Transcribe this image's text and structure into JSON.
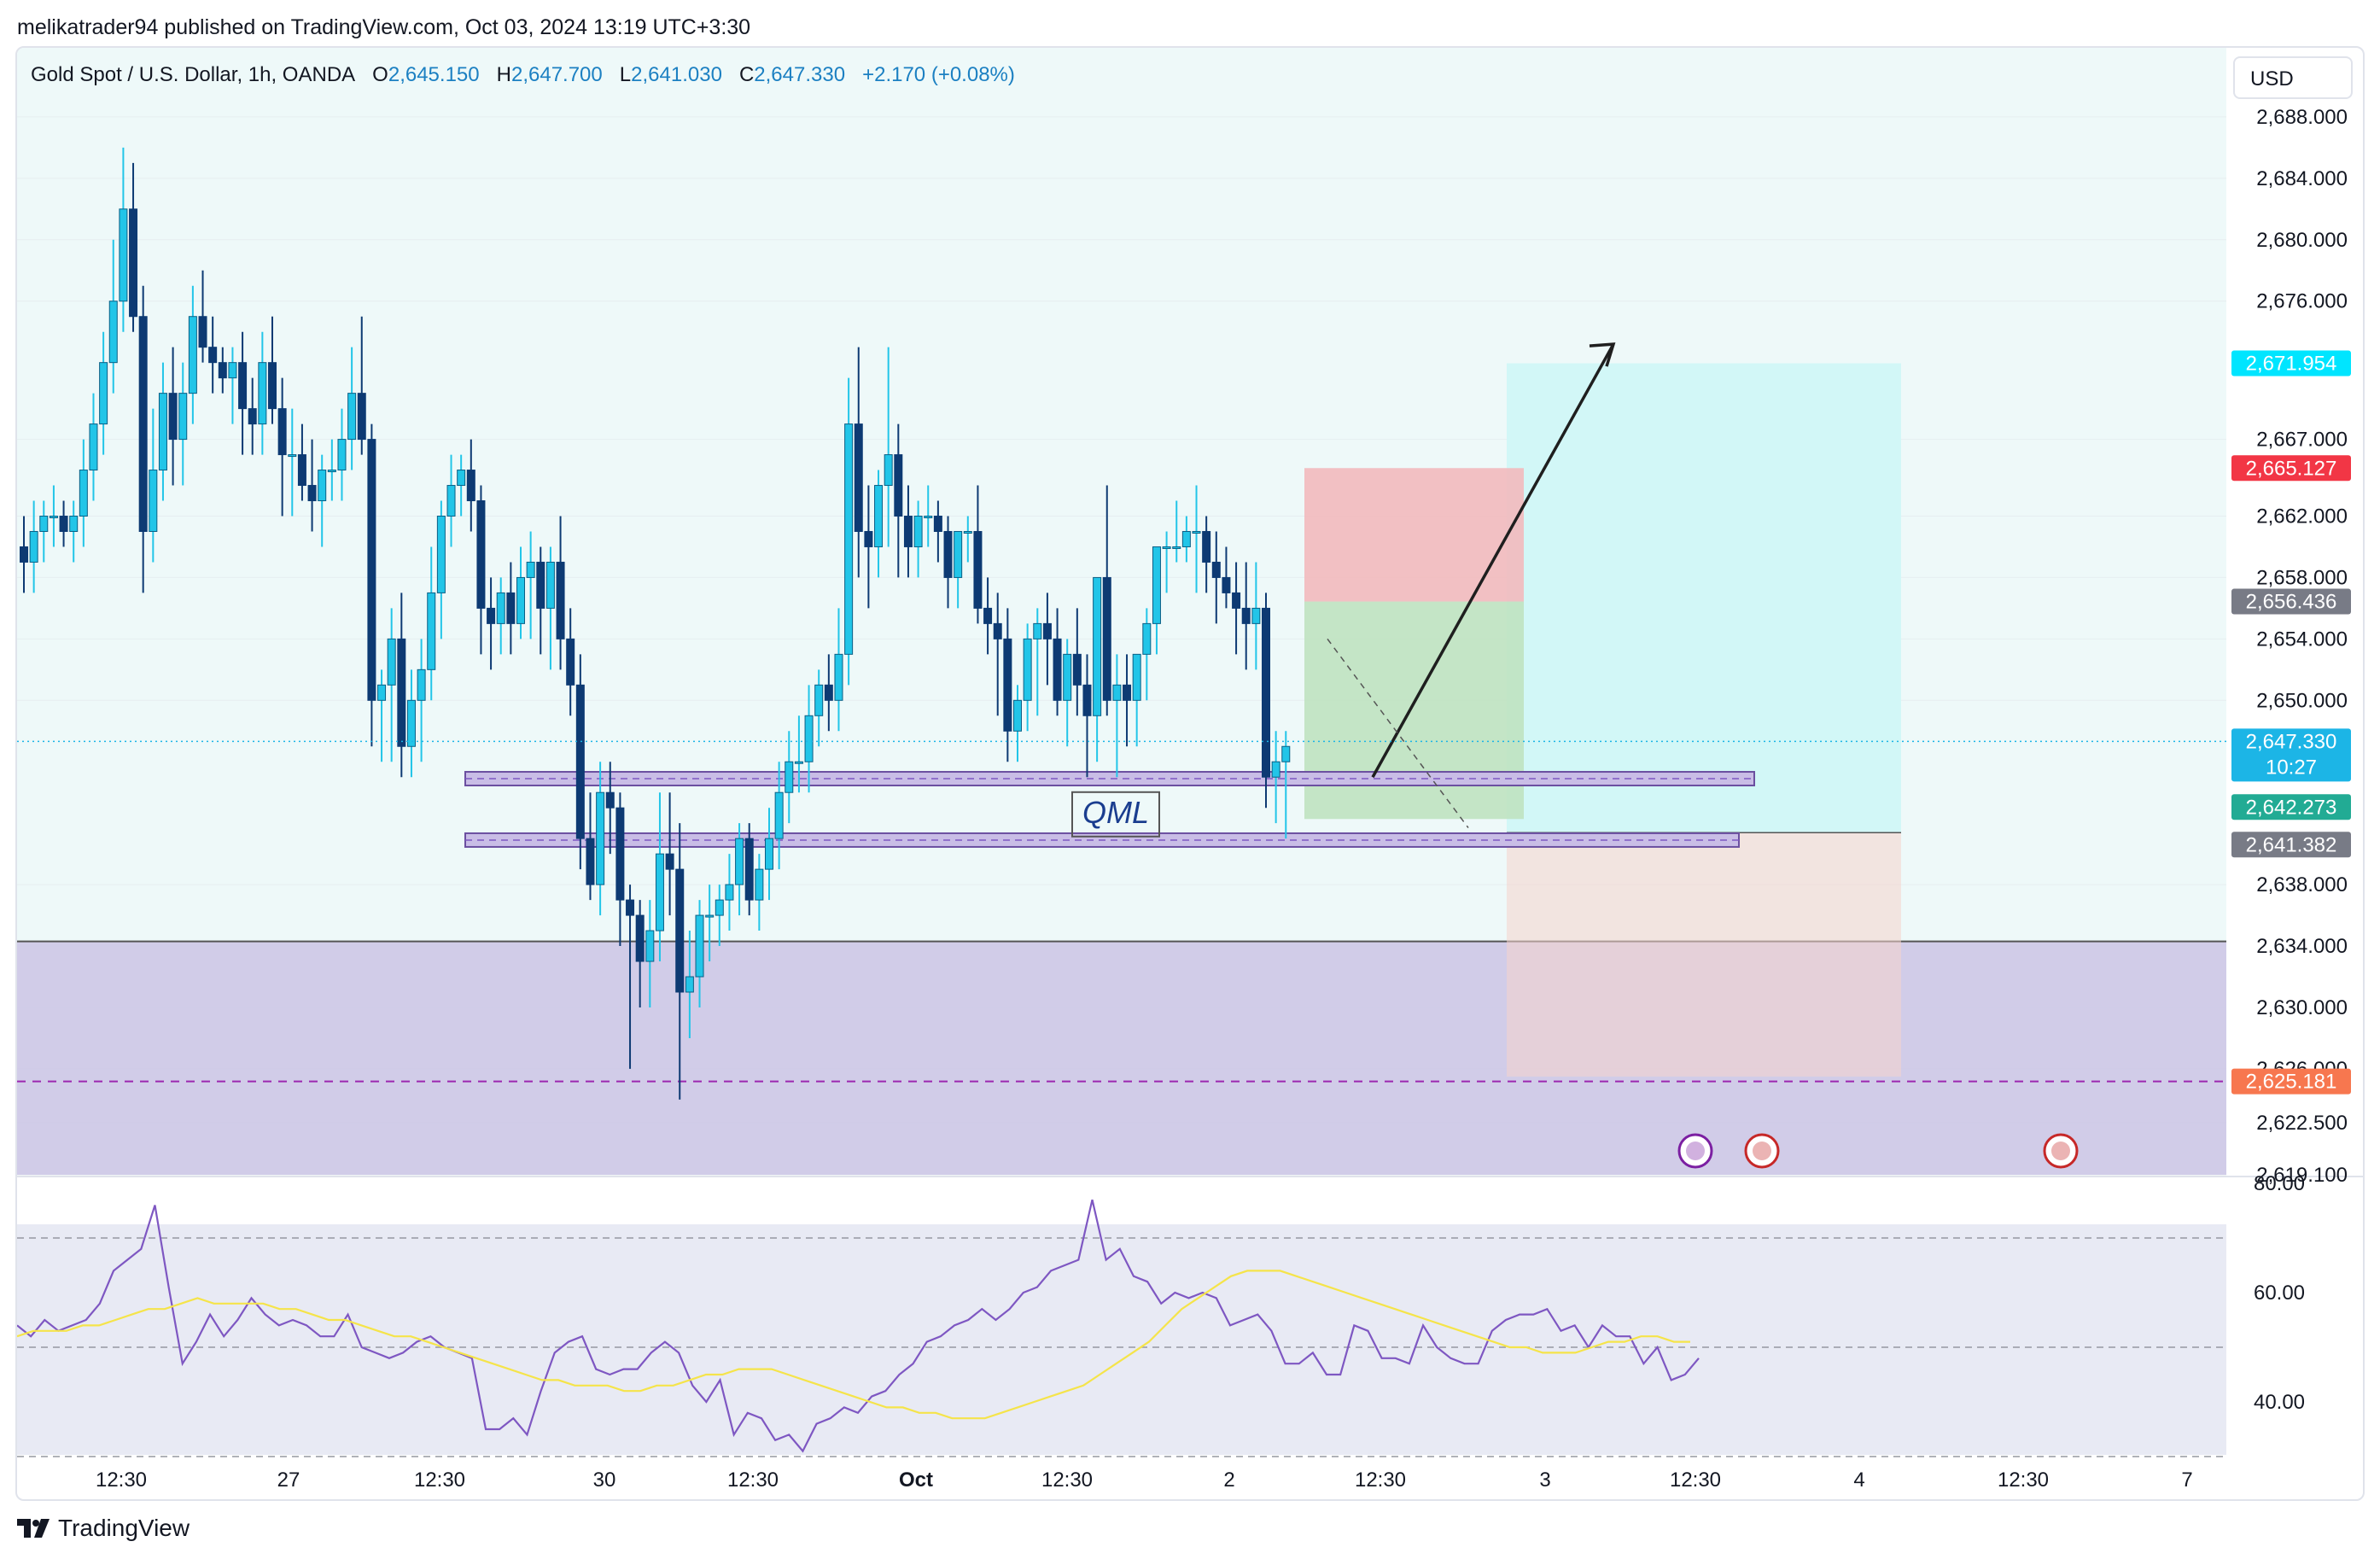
{
  "header": {
    "published": "melikatrader94 published on TradingView.com, Oct 03, 2024 13:19 UTC+3:30"
  },
  "legend": {
    "symbol": "Gold Spot / U.S. Dollar, 1h, OANDA",
    "open_label": "O",
    "open": "2,645.150",
    "high_label": "H",
    "high": "2,647.700",
    "low_label": "L",
    "low": "2,641.030",
    "close_label": "C",
    "close": "2,647.330",
    "change": "+2.170 (+0.08%)"
  },
  "currency": "USD",
  "countdown": "10:27",
  "annotation_text": "QML",
  "branding": "TradingView",
  "colors": {
    "up": "#22c5e8",
    "down": "#0d3a73",
    "zone_purple": "#cdc6e6",
    "target_cyan": "#d2f7f7",
    "stop_red": "#f2b9bc",
    "rsi_line": "#7e57c2",
    "rsi_ma": "#f5e44a"
  },
  "chart_data": [
    {
      "type": "candlestick",
      "title": "Gold Spot / U.S. Dollar, 1h, OANDA",
      "ylim": [
        2619.1,
        2692.5
      ],
      "y_ticks": [
        "2,688.000",
        "2,684.000",
        "2,680.000",
        "2,676.000",
        "2,667.000",
        "2,662.000",
        "2,658.000",
        "2,654.000",
        "2,650.000",
        "2,638.000",
        "2,634.000",
        "2,630.000",
        "2,626.000",
        "2,622.500",
        "2,619.100"
      ],
      "x_ticks": [
        "12:30",
        "27",
        "12:30",
        "30",
        "12:30",
        "Oct",
        "12:30",
        "2",
        "12:30",
        "3",
        "12:30",
        "4",
        "12:30",
        "7"
      ],
      "price_labels": [
        {
          "value": "2,671.954",
          "color": "#00e5ff"
        },
        {
          "value": "2,665.127",
          "color": "#f23645"
        },
        {
          "value": "2,656.436",
          "color": "#787b86"
        },
        {
          "value": "2,647.330",
          "color": "#1cb5e6"
        },
        {
          "value": "2,642.273",
          "color": "#22ab94"
        },
        {
          "value": "2,641.382",
          "color": "#787b86"
        },
        {
          "value": "2,625.181",
          "color": "#f7774f"
        }
      ],
      "ohlc": [
        [
          2660,
          2662,
          2657,
          2659
        ],
        [
          2659,
          2663,
          2657,
          2661
        ],
        [
          2661,
          2663,
          2659,
          2662
        ],
        [
          2662,
          2664,
          2660,
          2662
        ],
        [
          2662,
          2663,
          2660,
          2661
        ],
        [
          2661,
          2663,
          2659,
          2662
        ],
        [
          2662,
          2667,
          2660,
          2665
        ],
        [
          2665,
          2670,
          2663,
          2668
        ],
        [
          2668,
          2674,
          2666,
          2672
        ],
        [
          2672,
          2680,
          2670,
          2676
        ],
        [
          2676,
          2686,
          2674,
          2682
        ],
        [
          2682,
          2685,
          2674,
          2675
        ],
        [
          2675,
          2677,
          2657,
          2661
        ],
        [
          2661,
          2669,
          2659,
          2665
        ],
        [
          2665,
          2672,
          2663,
          2670
        ],
        [
          2670,
          2673,
          2664,
          2667
        ],
        [
          2667,
          2672,
          2664,
          2670
        ],
        [
          2670,
          2677,
          2668,
          2675
        ],
        [
          2675,
          2678,
          2672,
          2673
        ],
        [
          2673,
          2675,
          2670,
          2672
        ],
        [
          2672,
          2673,
          2670,
          2671
        ],
        [
          2671,
          2673,
          2668,
          2672
        ],
        [
          2672,
          2674,
          2666,
          2669
        ],
        [
          2669,
          2671,
          2666,
          2668
        ],
        [
          2668,
          2674,
          2666,
          2672
        ],
        [
          2672,
          2675,
          2668,
          2669
        ],
        [
          2669,
          2671,
          2662,
          2666
        ],
        [
          2666,
          2669,
          2662,
          2666
        ],
        [
          2666,
          2668,
          2663,
          2664
        ],
        [
          2664,
          2667,
          2661,
          2663
        ],
        [
          2663,
          2666,
          2660,
          2665
        ],
        [
          2665,
          2667,
          2663,
          2665
        ],
        [
          2665,
          2669,
          2663,
          2667
        ],
        [
          2667,
          2673,
          2665,
          2670
        ],
        [
          2670,
          2675,
          2666,
          2667
        ],
        [
          2667,
          2668,
          2647,
          2650
        ],
        [
          2650,
          2652,
          2646,
          2651
        ],
        [
          2651,
          2656,
          2646,
          2654
        ],
        [
          2654,
          2657,
          2645,
          2647
        ],
        [
          2647,
          2652,
          2645,
          2650
        ],
        [
          2650,
          2654,
          2646,
          2652
        ],
        [
          2652,
          2660,
          2650,
          2657
        ],
        [
          2657,
          2663,
          2654,
          2662
        ],
        [
          2662,
          2666,
          2660,
          2664
        ],
        [
          2664,
          2666,
          2662,
          2665
        ],
        [
          2665,
          2667,
          2661,
          2663
        ],
        [
          2663,
          2664,
          2653,
          2656
        ],
        [
          2656,
          2658,
          2652,
          2655
        ],
        [
          2655,
          2658,
          2653,
          2657
        ],
        [
          2657,
          2659,
          2653,
          2655
        ],
        [
          2655,
          2660,
          2654,
          2658
        ],
        [
          2658,
          2661,
          2654,
          2659
        ],
        [
          2659,
          2660,
          2653,
          2656
        ],
        [
          2656,
          2660,
          2652,
          2659
        ],
        [
          2659,
          2662,
          2652,
          2654
        ],
        [
          2654,
          2656,
          2649,
          2651
        ],
        [
          2651,
          2653,
          2639,
          2641
        ],
        [
          2641,
          2644,
          2637,
          2638
        ],
        [
          2638,
          2646,
          2636,
          2644
        ],
        [
          2644,
          2646,
          2640,
          2643
        ],
        [
          2643,
          2644,
          2634,
          2637
        ],
        [
          2637,
          2638,
          2626,
          2636
        ],
        [
          2636,
          2637,
          2630,
          2633
        ],
        [
          2633,
          2637,
          2630,
          2635
        ],
        [
          2635,
          2644,
          2633,
          2640
        ],
        [
          2640,
          2644,
          2636,
          2639
        ],
        [
          2639,
          2642,
          2624,
          2631
        ],
        [
          2631,
          2635,
          2628,
          2632
        ],
        [
          2632,
          2637,
          2630,
          2636
        ],
        [
          2636,
          2638,
          2633,
          2636
        ],
        [
          2636,
          2638,
          2634,
          2637
        ],
        [
          2637,
          2640,
          2635,
          2638
        ],
        [
          2638,
          2642,
          2636,
          2641
        ],
        [
          2641,
          2642,
          2636,
          2637
        ],
        [
          2637,
          2640,
          2635,
          2639
        ],
        [
          2639,
          2643,
          2637,
          2641
        ],
        [
          2641,
          2646,
          2639,
          2644
        ],
        [
          2644,
          2648,
          2642,
          2646
        ],
        [
          2646,
          2649,
          2644,
          2646
        ],
        [
          2646,
          2651,
          2644,
          2649
        ],
        [
          2649,
          2652,
          2647,
          2651
        ],
        [
          2651,
          2653,
          2648,
          2650
        ],
        [
          2650,
          2656,
          2648,
          2653
        ],
        [
          2653,
          2671,
          2651,
          2668
        ],
        [
          2668,
          2673,
          2658,
          2661
        ],
        [
          2661,
          2664,
          2656,
          2660
        ],
        [
          2660,
          2665,
          2658,
          2664
        ],
        [
          2664,
          2673,
          2660,
          2666
        ],
        [
          2666,
          2668,
          2658,
          2662
        ],
        [
          2662,
          2664,
          2658,
          2660
        ],
        [
          2660,
          2663,
          2658,
          2662
        ],
        [
          2662,
          2664,
          2660,
          2662
        ],
        [
          2662,
          2663,
          2659,
          2661
        ],
        [
          2661,
          2662,
          2656,
          2658
        ],
        [
          2658,
          2661,
          2656,
          2661
        ],
        [
          2661,
          2662,
          2659,
          2661
        ],
        [
          2661,
          2664,
          2655,
          2656
        ],
        [
          2656,
          2658,
          2653,
          2655
        ],
        [
          2655,
          2657,
          2649,
          2654
        ],
        [
          2654,
          2656,
          2646,
          2648
        ],
        [
          2648,
          2651,
          2646,
          2650
        ],
        [
          2650,
          2655,
          2648,
          2654
        ],
        [
          2654,
          2656,
          2649,
          2655
        ],
        [
          2655,
          2657,
          2651,
          2654
        ],
        [
          2654,
          2656,
          2649,
          2650
        ],
        [
          2650,
          2654,
          2647,
          2653
        ],
        [
          2653,
          2656,
          2649,
          2651
        ],
        [
          2651,
          2653,
          2645,
          2649
        ],
        [
          2649,
          2658,
          2646,
          2658
        ],
        [
          2658,
          2664,
          2649,
          2650
        ],
        [
          2650,
          2653,
          2645,
          2651
        ],
        [
          2651,
          2653,
          2647,
          2650
        ],
        [
          2650,
          2653,
          2647,
          2653
        ],
        [
          2653,
          2656,
          2650,
          2655
        ],
        [
          2655,
          2660,
          2653,
          2660
        ],
        [
          2660,
          2661,
          2657,
          2660
        ],
        [
          2660,
          2663,
          2659,
          2660
        ],
        [
          2660,
          2662,
          2659,
          2661
        ],
        [
          2661,
          2664,
          2657,
          2661
        ],
        [
          2661,
          2662,
          2657,
          2659
        ],
        [
          2659,
          2661,
          2655,
          2658
        ],
        [
          2658,
          2660,
          2656,
          2657
        ],
        [
          2657,
          2659,
          2653,
          2656
        ],
        [
          2656,
          2659,
          2652,
          2655
        ],
        [
          2655,
          2659,
          2652,
          2656
        ],
        [
          2656,
          2657,
          2643,
          2645
        ],
        [
          2645,
          2648,
          2642,
          2646
        ],
        [
          2646,
          2648,
          2641,
          2647
        ]
      ]
    },
    {
      "type": "line",
      "title": "RSI",
      "ylim": [
        30,
        80
      ],
      "y_ticks": [
        "80.00",
        "60.00",
        "40.00"
      ],
      "series": [
        {
          "values": [
            54,
            52,
            55,
            53,
            54,
            55,
            58,
            64,
            66,
            68,
            76,
            61,
            47,
            51,
            56,
            52,
            55,
            59,
            56,
            54,
            55,
            54,
            52,
            52,
            56,
            50,
            49,
            48,
            49,
            51,
            52,
            50,
            49,
            48,
            35,
            35,
            37,
            34,
            42,
            49,
            51,
            52,
            46,
            45,
            46,
            46,
            49,
            51,
            49,
            43,
            40,
            44,
            34,
            38,
            37,
            33,
            34,
            31,
            36,
            37,
            39,
            38,
            41,
            42,
            45,
            47,
            51,
            52,
            54,
            55,
            57,
            55,
            57,
            60,
            61,
            64,
            65,
            66,
            77,
            66,
            68,
            63,
            62,
            58,
            60,
            59,
            60,
            59,
            54,
            55,
            56,
            53,
            47,
            47,
            49,
            45,
            45,
            54,
            53,
            48,
            48,
            47,
            54,
            50,
            48,
            47,
            47,
            53,
            55,
            56,
            56,
            57,
            53,
            54,
            50,
            54,
            52,
            52,
            47,
            50,
            44,
            45,
            48
          ]
        },
        {
          "values": [
            52,
            53,
            53,
            53,
            54,
            54,
            55,
            56,
            57,
            57,
            58,
            59,
            58,
            58,
            58,
            58,
            57,
            57,
            56,
            55,
            55,
            54,
            53,
            52,
            52,
            51,
            50,
            49,
            48,
            47,
            46,
            45,
            44,
            44,
            43,
            43,
            43,
            42,
            42,
            43,
            43,
            44,
            45,
            45,
            46,
            46,
            46,
            45,
            44,
            43,
            42,
            41,
            40,
            39,
            39,
            38,
            38,
            37,
            37,
            37,
            38,
            39,
            40,
            41,
            42,
            43,
            45,
            47,
            49,
            51,
            54,
            57,
            59,
            61,
            63,
            64,
            64,
            64,
            63,
            62,
            61,
            60,
            59,
            58,
            57,
            56,
            55,
            54,
            53,
            52,
            51,
            50,
            50,
            49,
            49,
            49,
            50,
            51,
            51,
            52,
            52,
            51,
            51
          ]
        }
      ]
    }
  ]
}
